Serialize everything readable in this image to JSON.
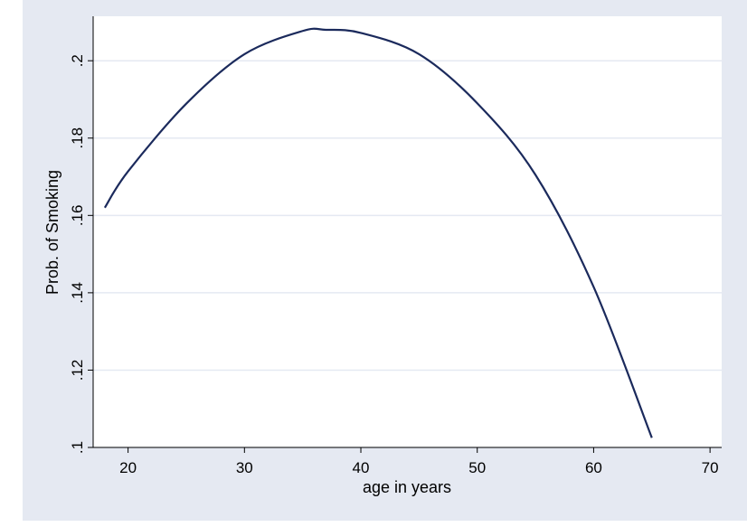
{
  "chart_data": {
    "type": "line",
    "title": "",
    "xlabel": "age in years",
    "ylabel": "Prob. of Smoking",
    "xlim": [
      17,
      71
    ],
    "ylim": [
      0.1,
      0.2115
    ],
    "x_ticks": [
      20,
      30,
      40,
      50,
      60,
      70
    ],
    "x_tick_labels": [
      "20",
      "30",
      "40",
      "50",
      "60",
      "70"
    ],
    "y_ticks": [
      0.1,
      0.12,
      0.14,
      0.16,
      0.18,
      0.2
    ],
    "y_tick_labels": [
      ".1",
      ".12",
      ".14",
      ".16",
      ".18",
      ".2"
    ],
    "grid": "horizontal",
    "series": [
      {
        "x": [
          18,
          20,
          25,
          30,
          35,
          37,
          40,
          45,
          50,
          55,
          60,
          65
        ],
        "y": [
          0.162,
          0.1714,
          0.1889,
          0.2017,
          0.2077,
          0.208,
          0.2072,
          0.2017,
          0.189,
          0.1705,
          0.1415,
          0.1025
        ]
      }
    ],
    "colors": {
      "line": "#1b2a5c",
      "background": "#e5e9f2",
      "plot_area": "#ffffff",
      "grid": "#e5e9f2"
    }
  }
}
